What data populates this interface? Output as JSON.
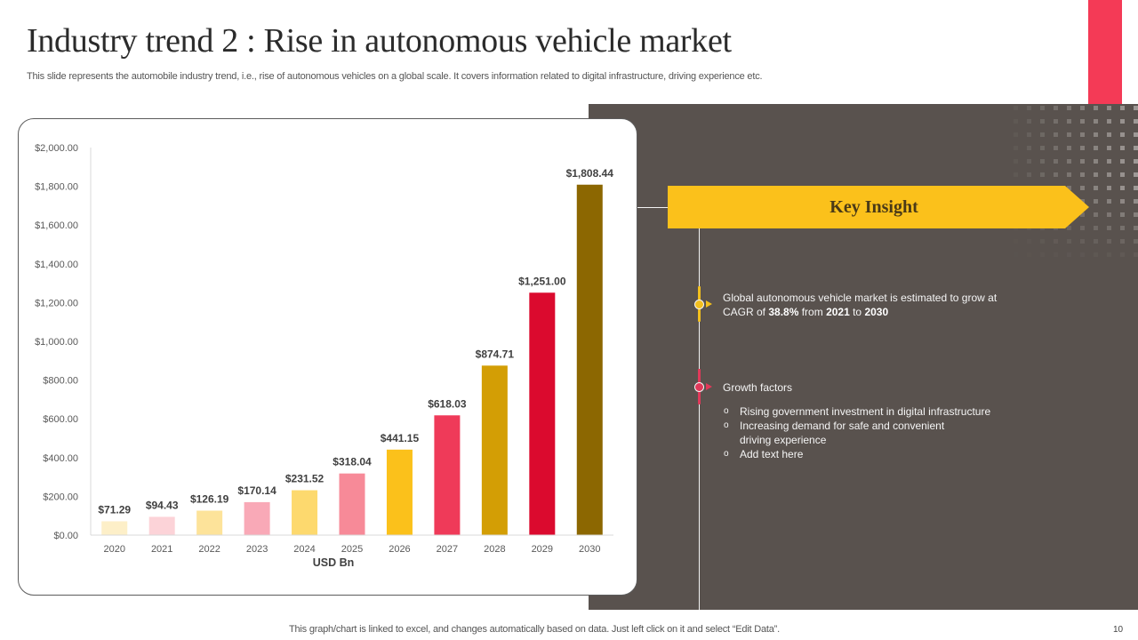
{
  "slide": {
    "title": "Industry trend 2 : Rise in autonomous vehicle market",
    "subtitle": "This slide represents the automobile industry trend, i.e.,  rise of autonomous vehicles on a global scale. It covers information related to digital infrastructure, driving experience etc.",
    "footer_note": "This graph/chart is linked to excel,  and changes automatically based on data. Just left click on it and select “Edit Data”.",
    "page_number": "10",
    "accent_color": "#F43A56",
    "panel_color": "#59524E"
  },
  "insight_panel": {
    "header": "Key Insight",
    "header_color": "#FBC11B",
    "point1": {
      "text_a": "Global autonomous vehicle  market  is estimated to grow at",
      "text_b_prefix": "CAGR of ",
      "cagr": "38.8%",
      "text_from": " from ",
      "year_from": "2021",
      "text_to": " to ",
      "year_to": "2030",
      "marker_color": "#F2BF1E"
    },
    "point2": {
      "heading": "Growth factors",
      "marker_color": "#E0395A",
      "bullet_glyph": "o",
      "bullets": [
        "Rising government  investment  in digital infrastructure",
        "Increasing  demand  for safe  and  convenient\ndriving  experience",
        "Add text here"
      ]
    }
  },
  "chart_data": {
    "type": "bar",
    "title": "",
    "xlabel": "USD Bn",
    "ylabel": "",
    "categories": [
      "2020",
      "2021",
      "2022",
      "2023",
      "2024",
      "2025",
      "2026",
      "2027",
      "2028",
      "2029",
      "2030"
    ],
    "values": [
      71.29,
      94.43,
      126.19,
      170.14,
      231.52,
      318.04,
      441.15,
      618.03,
      874.71,
      1251.0,
      1808.44
    ],
    "data_labels": [
      "$71.29",
      "$94.43",
      "$126.19",
      "$170.14",
      "$231.52",
      "$318.04",
      "$441.15",
      "$618.03",
      "$874.71",
      "$1,251.00",
      "$1,808.44"
    ],
    "bar_colors": [
      "#FDEFC8",
      "#FCD3D8",
      "#FDE39A",
      "#F9A9B7",
      "#FDD96E",
      "#F78A98",
      "#FBC11B",
      "#EF3A59",
      "#D39E05",
      "#DB0A2E",
      "#8C6701"
    ],
    "ylim": [
      0,
      2000
    ],
    "yticks": [
      0,
      200,
      400,
      600,
      800,
      1000,
      1200,
      1400,
      1600,
      1800,
      2000
    ],
    "ytick_labels": [
      "$0.00",
      "$200.00",
      "$400.00",
      "$600.00",
      "$800.00",
      "$1,000.00",
      "$1,200.00",
      "$1,400.00",
      "$1,600.00",
      "$1,800.00",
      "$2,000.00"
    ],
    "grid": false,
    "legend": "none"
  }
}
